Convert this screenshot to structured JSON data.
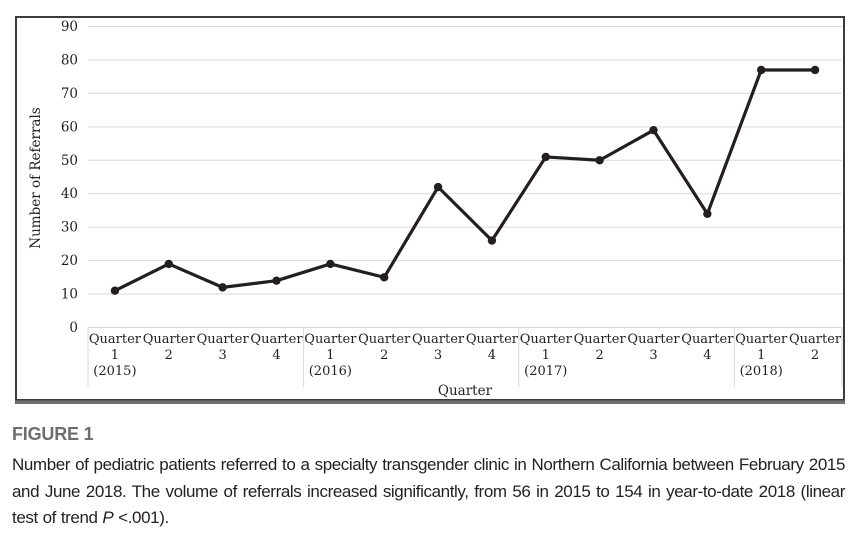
{
  "figure": {
    "label": "FIGURE 1",
    "caption_part1": "Number of pediatric patients referred to a specialty transgender clinic in Northern California between February 2015 and June 2018. The volume of referrals increased significantly, from 56 in 2015 to 154 in year-to-date 2018 (linear test of trend ",
    "caption_italic": "P",
    "caption_part2": " <.001)."
  },
  "colors": {
    "line": "#231f20",
    "point": "#231f20",
    "gridline": "#d9d9d9",
    "border": "#3b3b3b",
    "border_bottom": "#6d6e71",
    "figure_label": "#6d6e71",
    "text": "#231f20"
  },
  "chart_data": {
    "type": "line",
    "title": "",
    "xlabel": "Quarter",
    "ylabel": "Number of Referrals",
    "ylim": [
      0,
      90
    ],
    "yticks": [
      0,
      10,
      20,
      30,
      40,
      50,
      60,
      70,
      80,
      90
    ],
    "grid": true,
    "legend": "none",
    "categories": [
      {
        "line1": "Quarter",
        "line2": "1",
        "line3": "(2015)"
      },
      {
        "line1": "Quarter",
        "line2": "2"
      },
      {
        "line1": "Quarter",
        "line2": "3"
      },
      {
        "line1": "Quarter",
        "line2": "4"
      },
      {
        "line1": "Quarter",
        "line2": "1",
        "line3": "(2016)"
      },
      {
        "line1": "Quarter",
        "line2": "2"
      },
      {
        "line1": "Quarter",
        "line2": "3"
      },
      {
        "line1": "Quarter",
        "line2": "4"
      },
      {
        "line1": "Quarter",
        "line2": "1",
        "line3": "(2017)"
      },
      {
        "line1": "Quarter",
        "line2": "2"
      },
      {
        "line1": "Quarter",
        "line2": "3"
      },
      {
        "line1": "Quarter",
        "line2": "4"
      },
      {
        "line1": "Quarter",
        "line2": "1",
        "line3": "(2018)"
      },
      {
        "line1": "Quarter",
        "line2": "2"
      }
    ],
    "series": [
      {
        "name": "Number of Referrals",
        "values": [
          11,
          19,
          12,
          14,
          19,
          15,
          42,
          26,
          51,
          50,
          59,
          34,
          77,
          77
        ]
      }
    ]
  }
}
